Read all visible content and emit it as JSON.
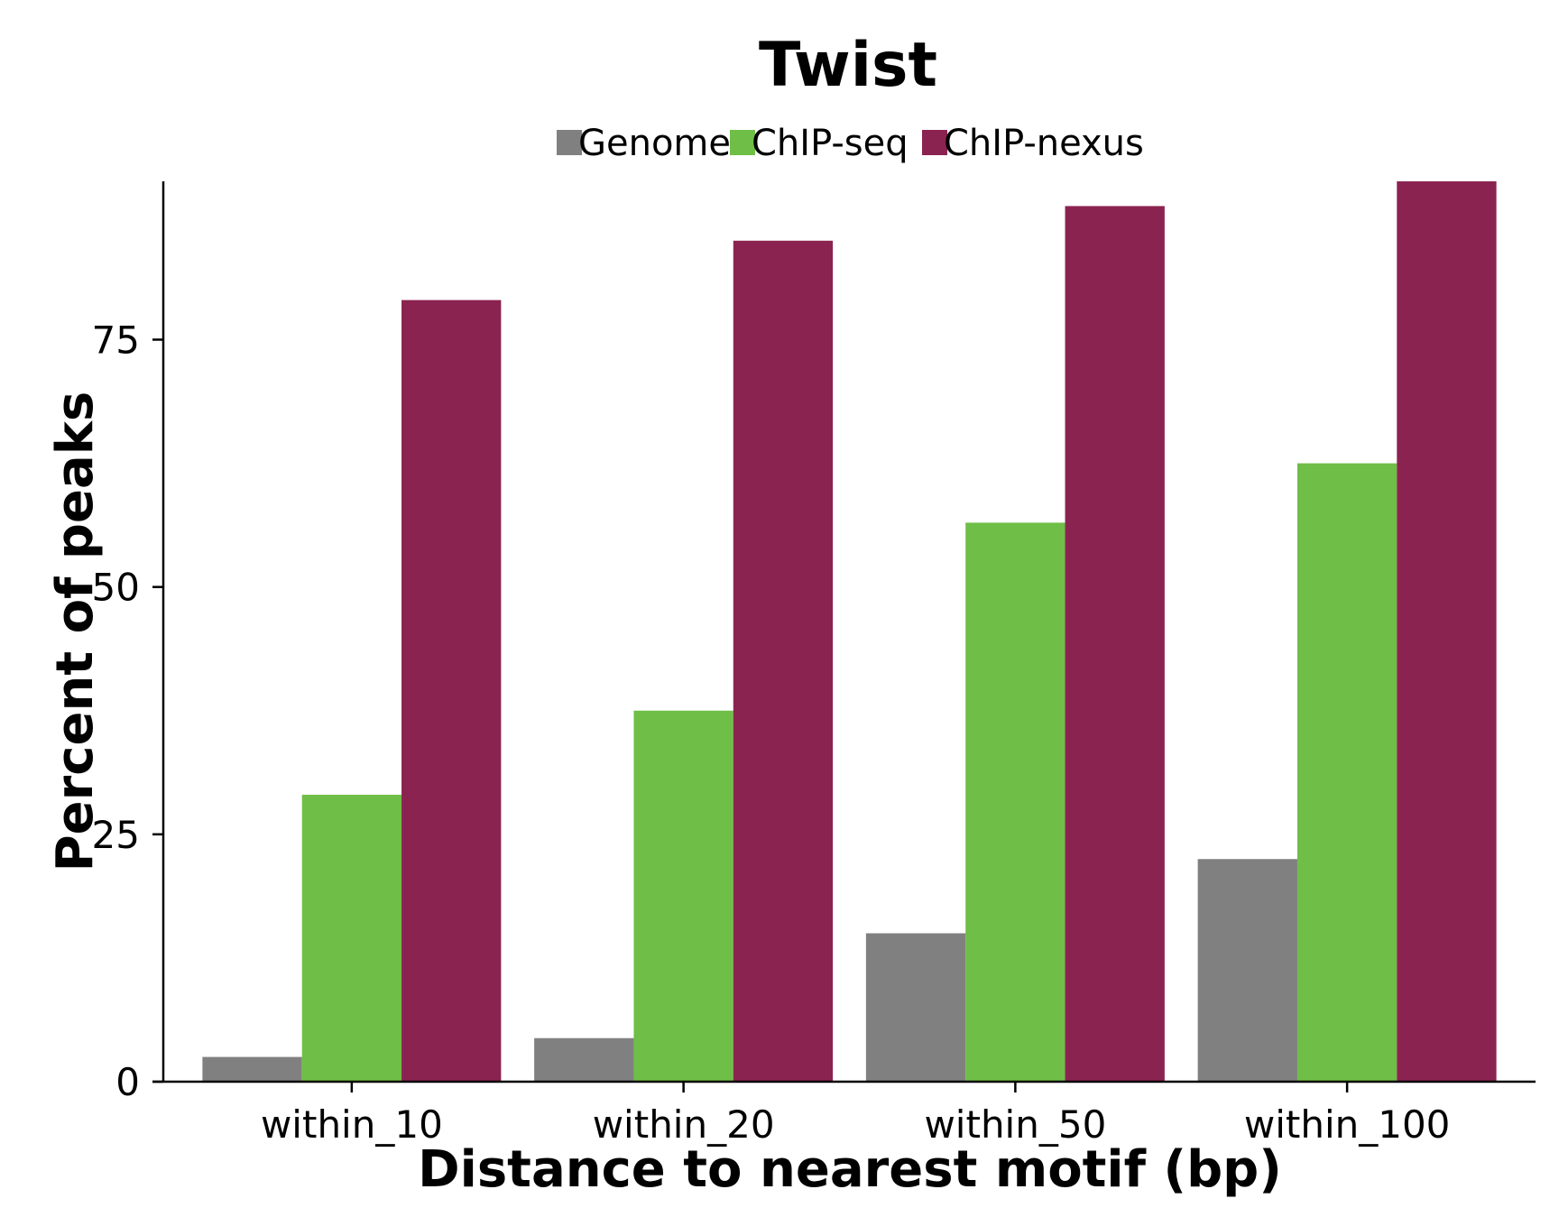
{
  "chart_data": {
    "type": "bar",
    "title": "Twist",
    "xlabel": "Distance to nearest motif (bp)",
    "ylabel": "Percent of peaks",
    "categories": [
      "within_10",
      "within_20",
      "within_50",
      "within_100"
    ],
    "series": [
      {
        "name": "Genome",
        "color": "#808080",
        "values": [
          2.5,
          4.4,
          15.0,
          22.5
        ]
      },
      {
        "name": "ChIP-seq",
        "color": "#6fbe47",
        "values": [
          29.0,
          37.5,
          56.5,
          62.5
        ]
      },
      {
        "name": "ChIP-nexus",
        "color": "#8b2351",
        "values": [
          79.0,
          85.0,
          88.5,
          91.0
        ]
      }
    ],
    "ylim": [
      0,
      91
    ],
    "yticks": [
      0,
      25,
      50,
      75
    ],
    "ytick_labels": [
      "0",
      "25",
      "50",
      "75"
    ],
    "legend_position": "top-center",
    "grid": false
  }
}
